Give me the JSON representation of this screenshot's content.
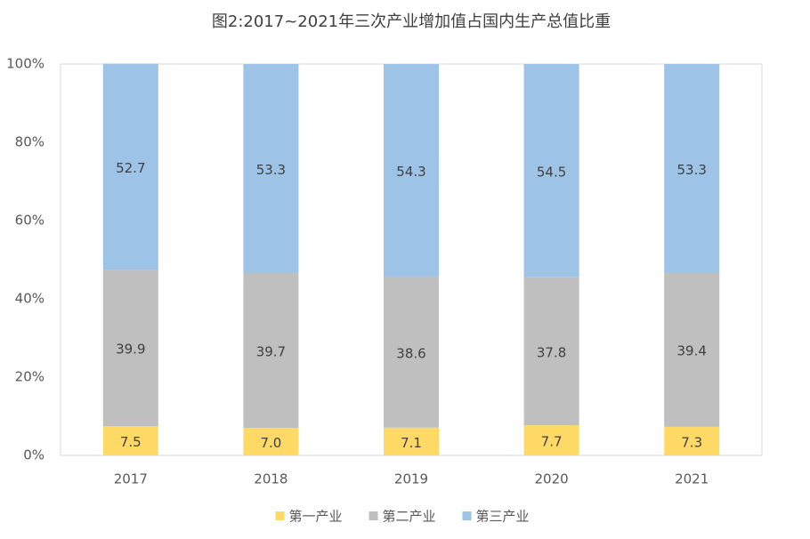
{
  "chart_data": {
    "type": "stacked-bar",
    "title": "图2:2017~2021年三次产业增加值占国内生产总值比重",
    "categories": [
      "2017",
      "2018",
      "2019",
      "2020",
      "2021"
    ],
    "series": [
      {
        "name": "第一产业",
        "color": "#ffd966",
        "values": [
          7.5,
          7.0,
          7.1,
          7.7,
          7.3
        ],
        "value_labels": [
          "7.5",
          "7.0",
          "7.1",
          "7.7",
          "7.3"
        ]
      },
      {
        "name": "第二产业",
        "color": "#bfbfbf",
        "values": [
          39.9,
          39.7,
          38.6,
          37.8,
          39.4
        ],
        "value_labels": [
          "39.9",
          "39.7",
          "38.6",
          "37.8",
          "39.4"
        ]
      },
      {
        "name": "第三产业",
        "color": "#9dc3e6",
        "values": [
          52.7,
          53.3,
          54.3,
          54.5,
          53.3
        ],
        "value_labels": [
          "52.7",
          "53.3",
          "54.3",
          "54.5",
          "53.3"
        ]
      }
    ],
    "ylim": [
      0,
      100
    ],
    "yticks": [
      {
        "value": 0,
        "label": "0%"
      },
      {
        "value": 20,
        "label": "20%"
      },
      {
        "value": 40,
        "label": "40%"
      },
      {
        "value": 60,
        "label": "60%"
      },
      {
        "value": 80,
        "label": "80%"
      },
      {
        "value": 100,
        "label": "100%"
      }
    ],
    "grid": false,
    "legend": "bottom"
  }
}
